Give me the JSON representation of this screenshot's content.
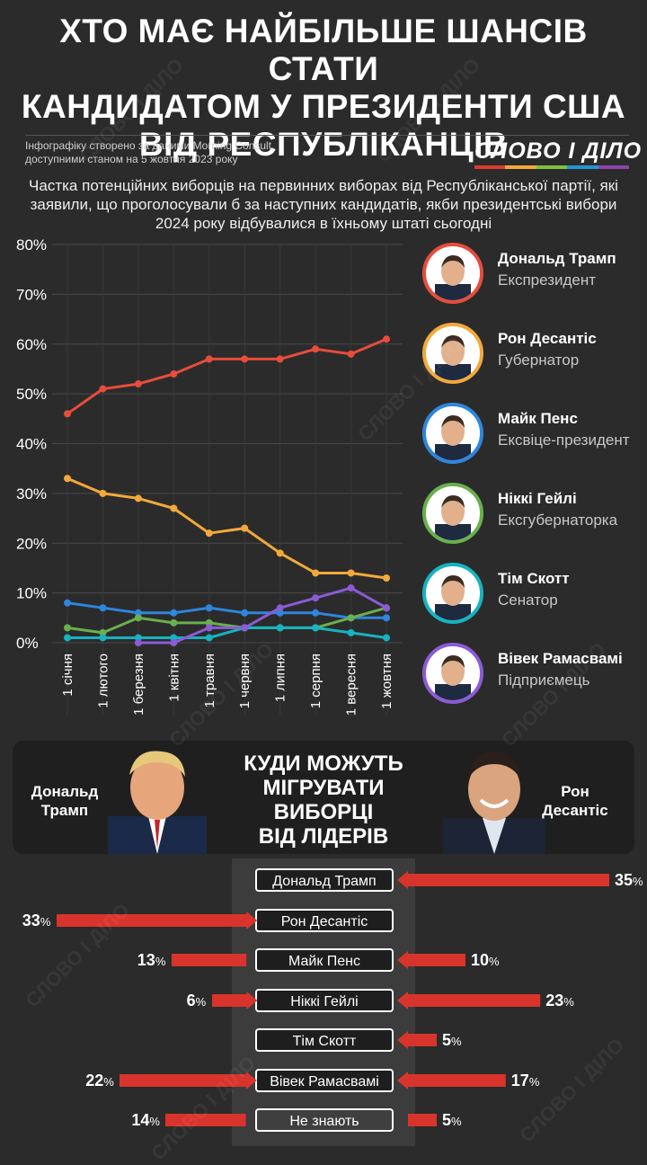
{
  "header": {
    "title_line1": "ХТО МАЄ НАЙБІЛЬШЕ ШАНСІВ СТАТИ",
    "title_line2": "КАНДИДАТОМ У ПРЕЗИДЕНТИ США",
    "title_line3": "ВІД РЕСПУБЛІКАНЦІВ",
    "source_line1": "Інфографіку створено за даними Morning Consult,",
    "source_line2": "доступними станом на 5 жовтня 2023 року",
    "brand": "СЛОВО І ДІЛО",
    "brand_colors": [
      "#e03a2f",
      "#f2a93b",
      "#7fc040",
      "#2196d3",
      "#8e44ad"
    ]
  },
  "subtitle": "Частка потенційних виборців на первинних виборах від Республіканської партії, які заявили, що проголосували б за наступних кандидатів, якби президентські вибори 2024 року відбувалися в їхньому штаті сьогодні",
  "watermark": "СЛОВО І ДІЛО",
  "chart_data": [
    {
      "type": "line",
      "x": [
        "1 січня",
        "1 лютого",
        "1 березня",
        "1 квітня",
        "1 травня",
        "1 червня",
        "1 липня",
        "1 серпня",
        "1 вересня",
        "1 жовтня"
      ],
      "yticks": [
        "0%",
        "10%",
        "20%",
        "30%",
        "40%",
        "50%",
        "60%",
        "70%",
        "80%"
      ],
      "ylim": [
        0,
        80
      ],
      "grid": true,
      "series": [
        {
          "name": "Дональд Трамп",
          "color": "#e74c3c",
          "values": [
            46,
            51,
            52,
            54,
            57,
            57,
            57,
            59,
            58,
            61
          ]
        },
        {
          "name": "Рон Десантіс",
          "color": "#f2a93b",
          "values": [
            33,
            30,
            29,
            27,
            22,
            23,
            18,
            14,
            14,
            13
          ]
        },
        {
          "name": "Майк Пенс",
          "color": "#2e86de",
          "values": [
            8,
            7,
            6,
            6,
            7,
            6,
            6,
            6,
            5,
            5
          ]
        },
        {
          "name": "Ніккі Гейлі",
          "color": "#6ab04c",
          "values": [
            3,
            2,
            5,
            4,
            4,
            3,
            3,
            3,
            5,
            7
          ]
        },
        {
          "name": "Тім Скотт",
          "color": "#17b3c0",
          "values": [
            1,
            1,
            1,
            1,
            1,
            3,
            3,
            3,
            2,
            1
          ]
        },
        {
          "name": "Вівек Рамасвамі",
          "color": "#8c5bd6",
          "values": [
            null,
            null,
            0,
            0,
            3,
            3,
            7,
            9,
            11,
            7
          ]
        }
      ]
    },
    {
      "type": "bar",
      "title": "КУДИ МОЖУТЬ МІГРУВАТИ ВИБОРЦІ ВІД ЛІДЕРІВ",
      "categories": [
        "Дональд Трамп",
        "Рон Десантіс",
        "Майк Пенс",
        "Ніккі Гейлі",
        "Тім Скотт",
        "Вівек Рамасвамі",
        "Не знають"
      ],
      "series": [
        {
          "name": "Дональд Трамп",
          "values": [
            null,
            33,
            13,
            6,
            null,
            22,
            14
          ]
        },
        {
          "name": "Рон Десантіс",
          "values": [
            35,
            null,
            10,
            23,
            5,
            17,
            5
          ]
        }
      ]
    }
  ],
  "candidates": [
    {
      "name": "Дональд Трамп",
      "role": "Експрезидент",
      "color": "#e74c3c"
    },
    {
      "name": "Рон Десантіс",
      "role": "Губернатор",
      "color": "#f2a93b"
    },
    {
      "name": "Майк Пенс",
      "role": "Ексвіце-президент",
      "color": "#2e86de"
    },
    {
      "name": "Ніккі Гейлі",
      "role": "Ексгубернаторка",
      "color": "#6ab04c"
    },
    {
      "name": "Тім Скотт",
      "role": "Сенатор",
      "color": "#17b3c0"
    },
    {
      "name": "Вівек Рамасвамі",
      "role": "Підприємець",
      "color": "#8c5bd6"
    }
  ],
  "migration": {
    "title_line1": "КУДИ МОЖУТЬ",
    "title_line2": "МІГРУВАТИ",
    "title_line3": "ВИБОРЦІ",
    "title_line4": "ВІД ЛІДЕРІВ",
    "left_leader_line1": "Дональд",
    "left_leader_line2": "Трамп",
    "right_leader_line1": "Рон",
    "right_leader_line2": "Десантіс",
    "bar_color": "#d9342b",
    "pct_unit": "%"
  }
}
